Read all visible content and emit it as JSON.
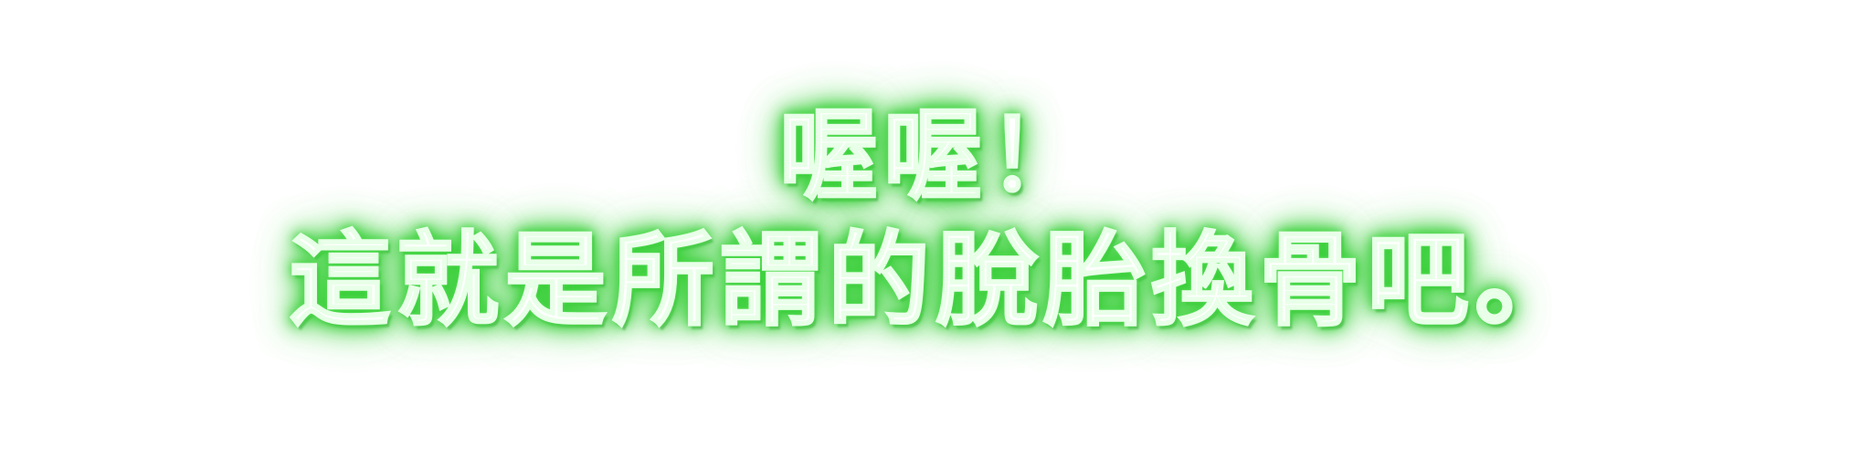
{
  "caption": {
    "line1": "喔喔！",
    "line2": "這就是所謂的脫胎換骨吧。"
  },
  "colors": {
    "text": "#ffffff",
    "glow": "#3fd43f",
    "background": "#ffffff"
  }
}
